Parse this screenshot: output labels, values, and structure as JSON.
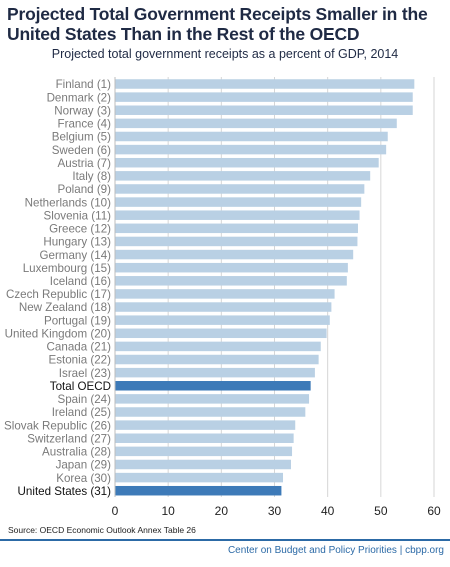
{
  "title": "Projected Total Government Receipts Smaller in the United States Than in the Rest of the OECD",
  "subtitle": "Projected total government receipts as a percent of GDP, 2014",
  "source": "Source: OECD Economic Outlook Annex Table 26",
  "credit": "Center on Budget and Policy Priorities | cbpp.org",
  "colors": {
    "bar": "#b9d0e4",
    "highlight": "#3d7ab8",
    "title": "#1f2a44",
    "credit": "#2c6aa6"
  },
  "chart_data": {
    "type": "bar",
    "orientation": "horizontal",
    "categories": [
      "Finland (1)",
      "Denmark (2)",
      "Norway (3)",
      "France (4)",
      "Belgium (5)",
      "Sweden (6)",
      "Austria (7)",
      "Italy (8)",
      "Poland (9)",
      "Netherlands (10)",
      "Slovenia (11)",
      "Greece (12)",
      "Hungary (13)",
      "Germany (14)",
      "Luxembourg (15)",
      "Iceland (16)",
      "Czech Republic (17)",
      "New Zealand (18)",
      "Portugal (19)",
      "United Kingdom (20)",
      "Canada (21)",
      "Estonia (22)",
      "Israel (23)",
      "Total OECD",
      "Spain (24)",
      "Ireland (25)",
      "Slovak Republic (26)",
      "Switzerland (27)",
      "Australia (28)",
      "Japan (29)",
      "Korea (30)",
      "United States (31)"
    ],
    "values": [
      56.3,
      56.0,
      56.0,
      53.0,
      51.3,
      51.0,
      49.6,
      48.0,
      46.9,
      46.3,
      46.0,
      45.7,
      45.6,
      44.8,
      43.8,
      43.6,
      41.3,
      40.7,
      40.4,
      39.8,
      38.7,
      38.3,
      37.6,
      36.8,
      36.5,
      35.8,
      33.9,
      33.6,
      33.3,
      33.1,
      31.6,
      31.3
    ],
    "highlighted": [
      "Total OECD",
      "United States (31)"
    ],
    "xlim": [
      0,
      60
    ],
    "xticks": [
      "0",
      "10",
      "20",
      "30",
      "40",
      "50",
      "60"
    ],
    "grid": "vertical"
  }
}
